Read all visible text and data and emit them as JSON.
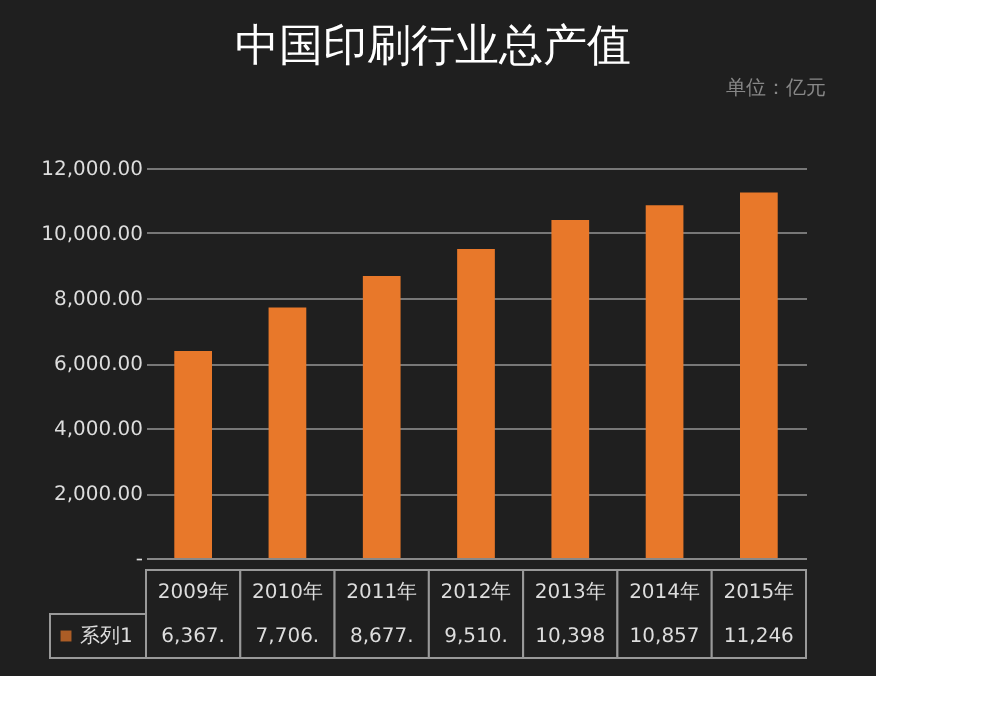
{
  "chart_data": {
    "type": "bar",
    "title": "中国印刷行业总产值",
    "categories": [
      "2009年",
      "2010年",
      "2011年",
      "2012年",
      "2013年",
      "2014年",
      "2015年"
    ],
    "series": [
      {
        "name": "系列1",
        "color": "#e8782a",
        "values": [
          6367,
          7706,
          8677,
          9510,
          10398,
          10857,
          11246
        ],
        "value_labels": [
          "6,367.",
          "7,706.",
          "8,677.",
          "9,510.",
          "10,398",
          "10,857",
          "11,246"
        ]
      }
    ],
    "ylim": [
      0,
      12000
    ],
    "yticks": [
      {
        "value": 0,
        "label": "-"
      },
      {
        "value": 2000,
        "label": "2,000.00"
      },
      {
        "value": 4000,
        "label": "4,000.00"
      },
      {
        "value": 6000,
        "label": "6,000.00"
      },
      {
        "value": 8000,
        "label": "8,000.00"
      },
      {
        "value": 10000,
        "label": "10,000.00"
      },
      {
        "value": 12000,
        "label": "12,000.00"
      }
    ],
    "annotations": [
      "单位：亿元"
    ],
    "grid": "y",
    "legend": "bottom"
  }
}
